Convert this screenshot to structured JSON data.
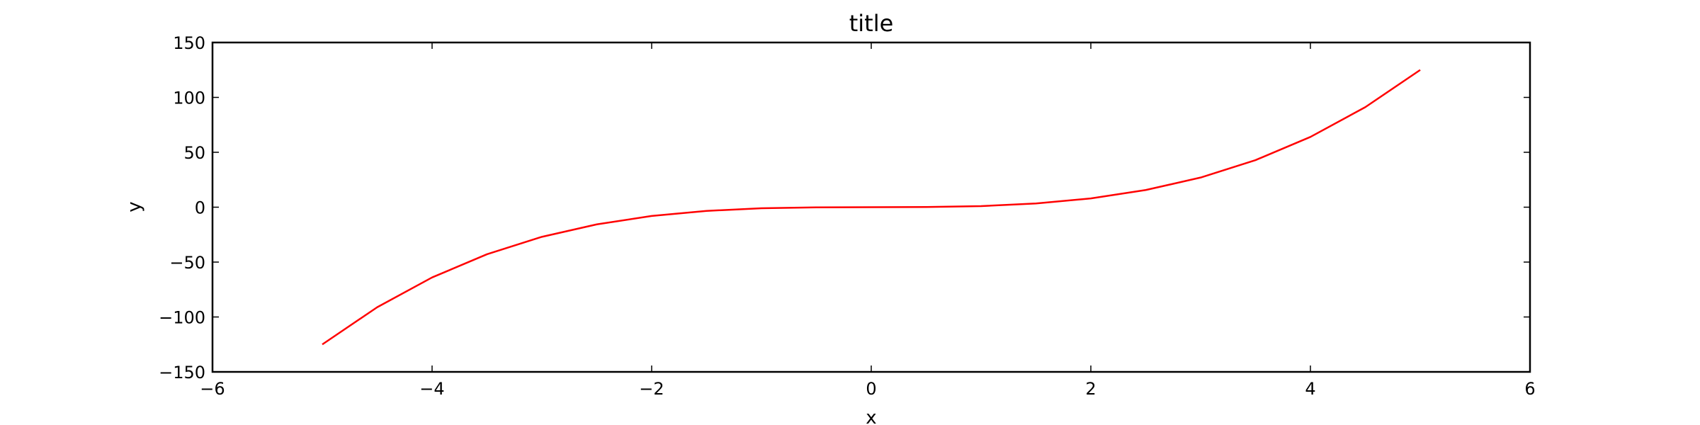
{
  "chart_data": {
    "type": "line",
    "title": "title",
    "xlabel": "x",
    "ylabel": "y",
    "xlim": [
      -6,
      6
    ],
    "ylim": [
      -150,
      150
    ],
    "xticks": [
      -6,
      -4,
      -2,
      0,
      2,
      4,
      6
    ],
    "xtick_labels": [
      "−6",
      "−4",
      "−2",
      "0",
      "2",
      "4",
      "6"
    ],
    "yticks": [
      -150,
      -100,
      -50,
      0,
      50,
      100,
      150
    ],
    "ytick_labels": [
      "−150",
      "−100",
      "−50",
      "0",
      "50",
      "100",
      "150"
    ],
    "grid": false,
    "series": [
      {
        "color": "#ff0000",
        "x": [
          -5,
          -4.5,
          -4,
          -3.5,
          -3,
          -2.5,
          -2,
          -1.5,
          -1,
          -0.5,
          0,
          0.5,
          1,
          1.5,
          2,
          2.5,
          3,
          3.5,
          4,
          4.5,
          5
        ],
        "y": [
          -125,
          -91.125,
          -64,
          -42.875,
          -27,
          -15.625,
          -8,
          -3.375,
          -1,
          -0.125,
          0,
          0.125,
          1,
          3.375,
          8,
          15.625,
          27,
          42.875,
          64,
          91.125,
          125
        ]
      }
    ]
  }
}
